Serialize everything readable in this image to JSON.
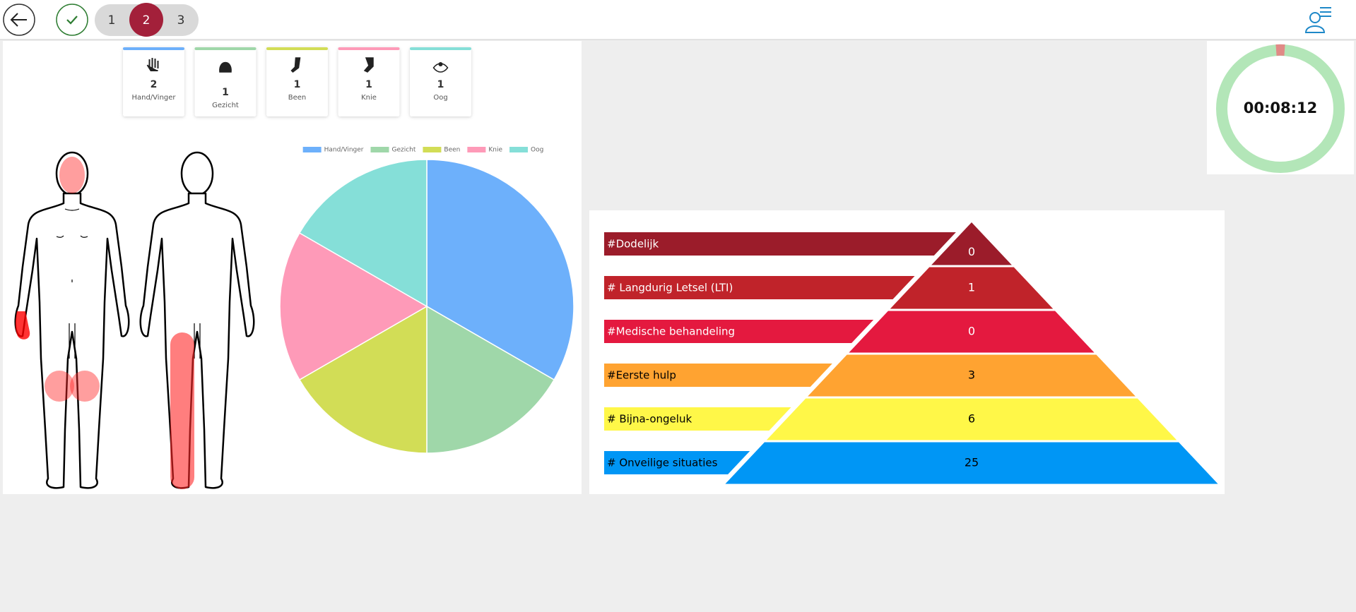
{
  "toolbar": {
    "steps": [
      "1",
      "2",
      "3"
    ],
    "active_step": "2"
  },
  "chart_data": {
    "type": "pie",
    "categories": [
      "Hand/Vinger",
      "Gezicht",
      "Been",
      "Knie",
      "Oog"
    ],
    "values": [
      2,
      1,
      1,
      1,
      1
    ],
    "colors": [
      "#6db0fb",
      "#9fd7a9",
      "#d2dd56",
      "#fe9ab8",
      "#85dfd8"
    ]
  },
  "pyramid": {
    "levels": [
      {
        "label": "#Dodelijk",
        "value": 0,
        "color": "#9b1c2a",
        "text_color": "#ffffff"
      },
      {
        "label": "# Langdurig Letsel (LTI)",
        "value": 1,
        "color": "#c0232a",
        "text_color": "#ffffff"
      },
      {
        "label": "#Medische behandeling",
        "value": 0,
        "color": "#e4193f",
        "text_color": "#ffffff"
      },
      {
        "label": "#Eerste hulp",
        "value": 3,
        "color": "#ffa331",
        "text_color": "#000000"
      },
      {
        "label": "# Bijna-ongeluk",
        "value": 6,
        "color": "#fff748",
        "text_color": "#000000"
      },
      {
        "label": "# Onveilige situaties",
        "value": 25,
        "color": "#0096f5",
        "text_color": "#000000"
      }
    ]
  },
  "timer": "00:08:12"
}
